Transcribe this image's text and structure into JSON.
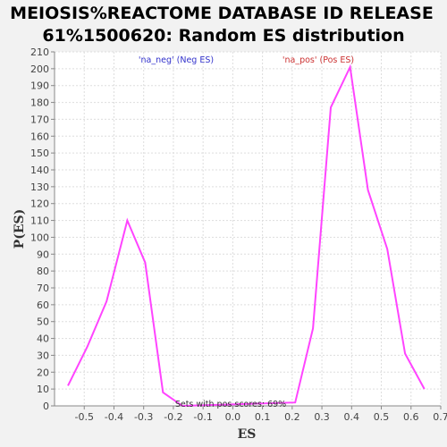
{
  "chart_data": {
    "type": "line",
    "title_line1": "MEIOSIS%REACTOME DATABASE ID RELEASE",
    "title_line2": "61%1500620: Random ES distribution",
    "xlabel": "ES",
    "ylabel": "P(ES)",
    "xlim": [
      -0.6,
      0.7
    ],
    "ylim": [
      0,
      210
    ],
    "x_ticks": [
      "-0.5",
      "-0.4",
      "-0.3",
      "-0.2",
      "-0.1",
      "0.0",
      "0.1",
      "0.2",
      "0.3",
      "0.4",
      "0.5",
      "0.6",
      "0.7"
    ],
    "x_tick_values": [
      -0.5,
      -0.4,
      -0.3,
      -0.2,
      -0.1,
      0.0,
      0.1,
      0.2,
      0.3,
      0.4,
      0.5,
      0.6,
      0.7
    ],
    "y_ticks": [
      0,
      10,
      20,
      30,
      40,
      50,
      60,
      70,
      80,
      90,
      100,
      110,
      120,
      130,
      140,
      150,
      160,
      170,
      180,
      190,
      200,
      210
    ],
    "grid": true,
    "legend": [
      {
        "label": "'na_neg' (Neg ES)",
        "color": "#3333cc"
      },
      {
        "label": "'na_pos' (Pos ES)",
        "color": "#cc3333"
      }
    ],
    "annotation": "Sets with pos scores: 69%",
    "series": [
      {
        "color": "#ff44ff",
        "x": [
          -0.555,
          -0.49,
          -0.425,
          -0.355,
          -0.295,
          -0.235,
          -0.17,
          0.21,
          0.27,
          0.33,
          0.395,
          0.455,
          0.52,
          0.58,
          0.645
        ],
        "y": [
          12,
          35,
          62,
          110,
          85,
          8,
          0,
          2,
          46,
          177,
          201,
          128,
          93,
          31,
          10
        ]
      }
    ]
  }
}
